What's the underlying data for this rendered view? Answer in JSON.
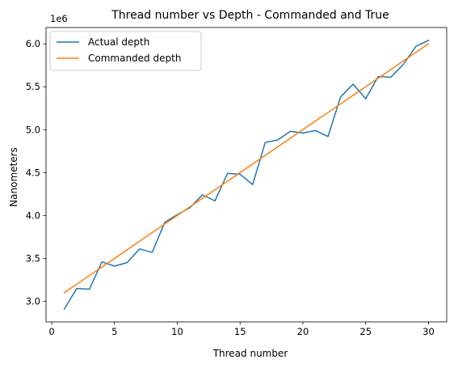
{
  "chart_data": {
    "type": "line",
    "title": "Thread number vs Depth - Commanded and True",
    "xlabel": "Thread number",
    "ylabel": "Nanometers",
    "y_offset_text": "1e6",
    "y_scale": 1000000,
    "xlim": [
      -0.45,
      31.45
    ],
    "ylim": [
      2760000,
      6190000
    ],
    "xticks": [
      0,
      5,
      10,
      15,
      20,
      25,
      30
    ],
    "xtick_labels": [
      "0",
      "5",
      "10",
      "15",
      "20",
      "25",
      "30"
    ],
    "yticks": [
      3000000,
      3500000,
      4000000,
      4500000,
      5000000,
      5500000,
      6000000
    ],
    "ytick_labels": [
      "3.0",
      "3.5",
      "4.0",
      "4.5",
      "5.0",
      "5.5",
      "6.0"
    ],
    "grid": false,
    "legend_position": "upper-left",
    "x": [
      1,
      2,
      3,
      4,
      5,
      6,
      7,
      8,
      9,
      10,
      11,
      12,
      13,
      14,
      15,
      16,
      17,
      18,
      19,
      20,
      21,
      22,
      23,
      24,
      25,
      26,
      27,
      28,
      29,
      30
    ],
    "series": [
      {
        "name": "Actual depth",
        "color": "#1f77b4",
        "values": [
          2910000,
          3150000,
          3140000,
          3460000,
          3410000,
          3450000,
          3610000,
          3570000,
          3920000,
          4010000,
          4090000,
          4240000,
          4170000,
          4490000,
          4480000,
          4360000,
          4850000,
          4880000,
          4980000,
          4960000,
          4990000,
          4920000,
          5380000,
          5530000,
          5360000,
          5620000,
          5610000,
          5760000,
          5970000,
          6040000
        ]
      },
      {
        "name": "Commanded depth",
        "color": "#ff7f0e",
        "values": [
          3100000,
          3200000,
          3300000,
          3400000,
          3500000,
          3600000,
          3700000,
          3800000,
          3900000,
          4000000,
          4100000,
          4200000,
          4300000,
          4400000,
          4500000,
          4600000,
          4700000,
          4800000,
          4900000,
          5000000,
          5100000,
          5200000,
          5300000,
          5400000,
          5500000,
          5600000,
          5700000,
          5800000,
          5900000,
          6000000
        ]
      }
    ]
  }
}
